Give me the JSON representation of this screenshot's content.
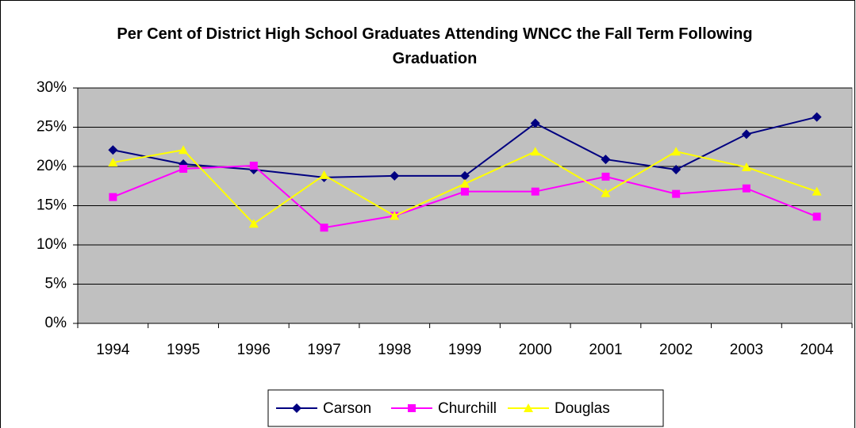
{
  "chart_data": {
    "type": "line",
    "title": "Per Cent of District High School Graduates Attending WNCC the Fall Term Following Graduation",
    "categories": [
      "1994",
      "1995",
      "1996",
      "1997",
      "1998",
      "1999",
      "2000",
      "2001",
      "2002",
      "2003",
      "2004"
    ],
    "series": [
      {
        "name": "Carson",
        "color": "#000080",
        "values": [
          22.1,
          20.3,
          19.6,
          18.6,
          18.8,
          18.8,
          25.5,
          20.9,
          19.6,
          24.1,
          26.3
        ]
      },
      {
        "name": "Churchill",
        "color": "#ff00ff",
        "values": [
          16.1,
          19.7,
          20.1,
          12.2,
          13.7,
          16.8,
          16.8,
          18.7,
          16.5,
          17.2,
          13.6
        ]
      },
      {
        "name": "Douglas",
        "color": "#ffff00",
        "values": [
          20.5,
          22.1,
          12.7,
          18.9,
          13.7,
          17.8,
          21.9,
          16.6,
          21.9,
          19.9,
          16.8
        ]
      }
    ],
    "ylim": [
      0,
      30
    ],
    "yticks": [
      {
        "value": 0,
        "label": "0%"
      },
      {
        "value": 5,
        "label": "5%"
      },
      {
        "value": 10,
        "label": "10%"
      },
      {
        "value": 15,
        "label": "15%"
      },
      {
        "value": 20,
        "label": "20%"
      },
      {
        "value": 25,
        "label": "25%"
      },
      {
        "value": 30,
        "label": "30%"
      }
    ],
    "grid": true,
    "legend": "bottom"
  }
}
